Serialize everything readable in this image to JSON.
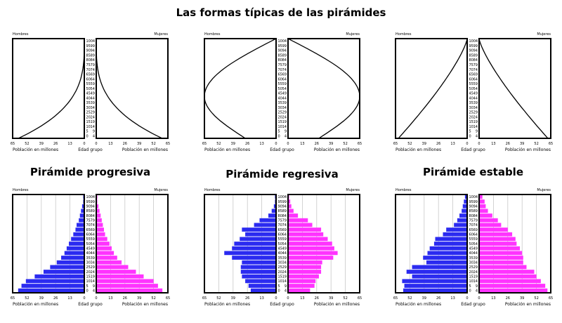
{
  "title": "Las formas típicas de las pirámides",
  "labels": {
    "men": "Hombres",
    "women": "Mujeres",
    "x_axis": "Población en millones",
    "age_axis": "Edad grupo"
  },
  "x_ticks": [
    "65",
    "52",
    "39",
    "26",
    "13",
    "0",
    "0",
    "13",
    "26",
    "39",
    "52",
    "65"
  ],
  "age_groups": [
    "0-4",
    "5-9",
    "10-14",
    "15-19",
    "20-24",
    "25-29",
    "30-34",
    "35-39",
    "40-44",
    "45-49",
    "50-54",
    "55-59",
    "60-64",
    "65-69",
    "70-74",
    "75-79",
    "80-84",
    "85-89",
    "90-94",
    "95-99",
    "100+"
  ],
  "age_labels_left": [
    "0",
    "5",
    "10",
    "15",
    "20",
    "25",
    "30",
    "35",
    "40",
    "45",
    "50",
    "55",
    "60",
    "65",
    "70",
    "75",
    "80",
    "85",
    "90",
    "95",
    "100"
  ],
  "age_labels_right": [
    "4",
    "9",
    "14",
    "19",
    "24",
    "29",
    "34",
    "39",
    "44",
    "49",
    "54",
    "59",
    "64",
    "69",
    "74",
    "79",
    "84",
    "89",
    "94",
    "99",
    "4"
  ],
  "colors": {
    "men": "#2b2bf0",
    "women": "#ff33ff",
    "grid": "#c8c8c8",
    "frame": "#000000"
  },
  "shapes": [
    {
      "name": "progresiva-shape",
      "kind": "concave"
    },
    {
      "name": "regresiva-shape",
      "kind": "bulge"
    },
    {
      "name": "estable-shape",
      "kind": "steady"
    }
  ],
  "chart_data": [
    {
      "type": "bar",
      "title": "Pirámide progresiva",
      "categories": [
        "0-4",
        "5-9",
        "10-14",
        "15-19",
        "20-24",
        "25-29",
        "30-34",
        "35-39",
        "40-44",
        "45-49",
        "50-54",
        "55-59",
        "60-64",
        "65-69",
        "70-74",
        "75-79",
        "80-84",
        "85-89",
        "90-94",
        "95-99",
        "100+"
      ],
      "series": [
        {
          "name": "Hombres",
          "values": [
            60,
            57,
            53,
            45,
            37,
            31,
            25,
            21,
            18,
            16,
            14,
            12,
            10,
            8,
            7,
            5,
            4,
            3,
            2,
            1,
            1
          ]
        },
        {
          "name": "Mujeres",
          "values": [
            60,
            56,
            52,
            43,
            36,
            29,
            23,
            19,
            16,
            14,
            12,
            10,
            8,
            7,
            6,
            5,
            4,
            3,
            2,
            1,
            1
          ]
        }
      ],
      "xlabel": "Población en millones",
      "ylabel": "Edad grupo",
      "xlim": [
        0,
        65
      ]
    },
    {
      "type": "bar",
      "title": "Pirámide regresiva",
      "categories": [
        "0-4",
        "5-9",
        "10-14",
        "15-19",
        "20-24",
        "25-29",
        "30-34",
        "35-39",
        "40-44",
        "45-49",
        "50-54",
        "55-59",
        "60-64",
        "65-69",
        "70-74",
        "75-79",
        "80-84",
        "85-89",
        "90-94",
        "95-99",
        "100+"
      ],
      "series": [
        {
          "name": "Hombres",
          "values": [
            23,
            25,
            28,
            31,
            32,
            32,
            31,
            40,
            47,
            40,
            38,
            33,
            28,
            31,
            20,
            15,
            7,
            4,
            2,
            1,
            1
          ]
        },
        {
          "name": "Mujeres",
          "values": [
            20,
            24,
            25,
            28,
            30,
            30,
            31,
            41,
            45,
            42,
            40,
            36,
            32,
            30,
            22,
            18,
            9,
            5,
            3,
            2,
            1
          ]
        }
      ],
      "xlabel": "Población en millones",
      "ylabel": "Edad grupo",
      "xlim": [
        0,
        65
      ]
    },
    {
      "type": "bar",
      "title": "Pirámide estable",
      "categories": [
        "0-4",
        "5-9",
        "10-14",
        "15-19",
        "20-24",
        "25-29",
        "30-34",
        "35-39",
        "40-44",
        "45-49",
        "50-54",
        "55-59",
        "60-64",
        "65-69",
        "70-74",
        "75-79",
        "80-84",
        "85-89",
        "90-94",
        "95-99",
        "100+"
      ],
      "series": [
        {
          "name": "Hombres",
          "values": [
            58,
            57,
            59,
            50,
            55,
            50,
            37,
            40,
            36,
            34,
            30,
            29,
            22,
            19,
            12,
            9,
            7,
            5,
            4,
            3,
            2
          ]
        },
        {
          "name": "Mujeres",
          "values": [
            62,
            60,
            56,
            52,
            50,
            43,
            40,
            40,
            39,
            37,
            34,
            33,
            30,
            26,
            20,
            17,
            12,
            8,
            6,
            5,
            3
          ]
        }
      ],
      "xlabel": "Población en millones",
      "ylabel": "Edad grupo",
      "xlim": [
        0,
        65
      ]
    }
  ]
}
